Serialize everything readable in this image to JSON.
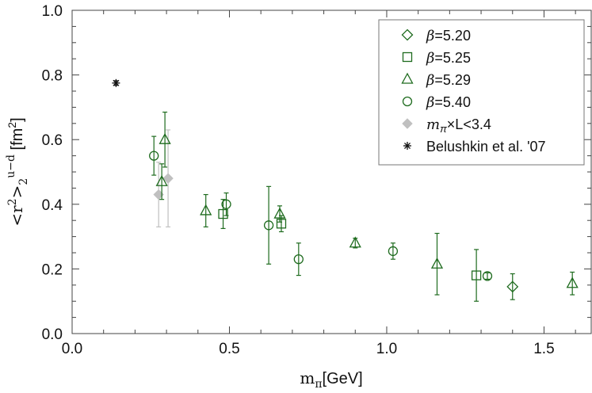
{
  "chart_data": {
    "type": "scatter",
    "title": "",
    "xlabel": "m_π[GeV]",
    "ylabel": "<r²>₂^{u−d} [fm²]",
    "xlim": [
      0.0,
      1.65
    ],
    "ylim": [
      0.0,
      1.0
    ],
    "x_ticks": [
      0.0,
      0.5,
      1.0,
      1.5
    ],
    "y_ticks": [
      0.0,
      0.2,
      0.4,
      0.6,
      0.8,
      1.0
    ],
    "x_tick_labels": [
      "0.0",
      "0.5",
      "1.0",
      "1.5"
    ],
    "y_tick_labels": [
      "0.0",
      "0.2",
      "0.4",
      "0.6",
      "0.8",
      "1.0"
    ],
    "legend_position": "top-right",
    "colors": {
      "green": "#1e6b1e",
      "gray": "#c0c0c0",
      "black": "#111111"
    },
    "series": [
      {
        "name": "β=5.20",
        "legend_prefix": "β",
        "legend_value": "=5.20",
        "marker": "diamond",
        "color": "#1e6b1e",
        "points": [
          {
            "x": 1.4,
            "y": 0.145,
            "err": 0.04
          }
        ]
      },
      {
        "name": "β=5.25",
        "legend_prefix": "β",
        "legend_value": "=5.25",
        "marker": "square",
        "color": "#1e6b1e",
        "points": [
          {
            "x": 0.48,
            "y": 0.37,
            "err": 0.045
          },
          {
            "x": 0.665,
            "y": 0.34,
            "err": 0.025
          },
          {
            "x": 1.285,
            "y": 0.18,
            "err": 0.08
          }
        ]
      },
      {
        "name": "β=5.29",
        "legend_prefix": "β",
        "legend_value": "=5.29",
        "marker": "triangle",
        "color": "#1e6b1e",
        "points": [
          {
            "x": 0.285,
            "y": 0.47,
            "err": 0.055
          },
          {
            "x": 0.295,
            "y": 0.6,
            "err": 0.085
          },
          {
            "x": 0.425,
            "y": 0.38,
            "err": 0.05
          },
          {
            "x": 0.66,
            "y": 0.37,
            "err": 0.025
          },
          {
            "x": 0.9,
            "y": 0.28,
            "err": 0.015
          },
          {
            "x": 1.16,
            "y": 0.215,
            "err": 0.095
          },
          {
            "x": 1.59,
            "y": 0.155,
            "err": 0.035
          }
        ]
      },
      {
        "name": "β=5.40",
        "legend_prefix": "β",
        "legend_value": "=5.40",
        "marker": "circle",
        "color": "#1e6b1e",
        "points": [
          {
            "x": 0.26,
            "y": 0.55,
            "err": 0.06
          },
          {
            "x": 0.49,
            "y": 0.4,
            "err": 0.035
          },
          {
            "x": 0.625,
            "y": 0.335,
            "err": 0.12
          },
          {
            "x": 0.72,
            "y": 0.23,
            "err": 0.05
          },
          {
            "x": 1.02,
            "y": 0.255,
            "err": 0.025
          },
          {
            "x": 1.32,
            "y": 0.178,
            "err": 0.01
          }
        ]
      },
      {
        "name": "m_π×L<3.4",
        "legend_prefix": "m",
        "legend_sub": "π",
        "legend_value": "×L<3.4",
        "marker": "diamond-filled",
        "color": "#c0c0c0",
        "points": [
          {
            "x": 0.275,
            "y": 0.43,
            "err": 0.1
          },
          {
            "x": 0.305,
            "y": 0.48,
            "err": 0.15
          }
        ]
      },
      {
        "name": "Belushkin et al. '07",
        "legend_value": "Belushkin et al. '07",
        "marker": "star",
        "color": "#111111",
        "points": [
          {
            "x": 0.1396,
            "y": 0.775,
            "err": 0.007
          }
        ]
      }
    ]
  }
}
